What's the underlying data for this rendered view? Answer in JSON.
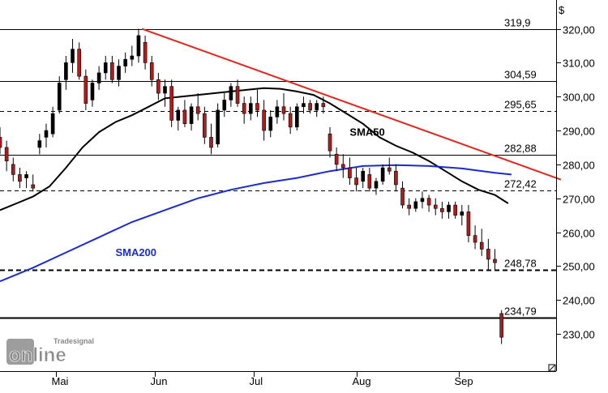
{
  "chart_data": {
    "type": "candlestick",
    "currency_label": "$",
    "y_ticks": [
      "320,00",
      "310,00",
      "300,00",
      "290,00",
      "280,00",
      "270,00",
      "260,00",
      "250,00",
      "240,00",
      "230,00"
    ],
    "y_tick_values": [
      320,
      310,
      300,
      290,
      280,
      270,
      260,
      250,
      240,
      230
    ],
    "ylim": [
      219,
      328.5
    ],
    "x_months": [
      {
        "label": "Mai",
        "day": 17
      },
      {
        "label": "Jun",
        "day": 47
      },
      {
        "label": "Jul",
        "day": 77
      },
      {
        "label": "Aug",
        "day": 108
      },
      {
        "label": "Sep",
        "day": 139
      }
    ],
    "xlim": [
      0,
      170
    ],
    "levels": [
      {
        "value": 319.9,
        "label": "319,9",
        "style": "solid"
      },
      {
        "value": 304.59,
        "label": "304,59",
        "style": "solid"
      },
      {
        "value": 295.65,
        "label": "295,65",
        "style": "dashed"
      },
      {
        "value": 282.88,
        "label": "282,88",
        "style": "solid"
      },
      {
        "value": 272.42,
        "label": "272,42",
        "style": "dashed"
      },
      {
        "value": 248.78,
        "label": "248,78",
        "style": "dashed-bold"
      },
      {
        "value": 234.79,
        "label": "234,79",
        "style": "solid-bold"
      }
    ],
    "trendline": {
      "from": [
        43,
        320.0
      ],
      "to": [
        170,
        275.5
      ],
      "color": "#e4261c"
    },
    "annotations": [
      {
        "text": "SMA50",
        "day": 106,
        "value": 288.5,
        "color": "#000000"
      },
      {
        "text": "SMA200",
        "day": 35,
        "value": 253.0,
        "color": "#1a2ad6"
      }
    ],
    "series": [
      {
        "name": "SMA50",
        "color": "#000000",
        "points": [
          [
            0,
            266.5
          ],
          [
            5,
            268.5
          ],
          [
            10,
            270.5
          ],
          [
            15,
            273.5
          ],
          [
            20,
            279
          ],
          [
            25,
            285
          ],
          [
            30,
            289.5
          ],
          [
            35,
            292.5
          ],
          [
            40,
            294.5
          ],
          [
            45,
            297
          ],
          [
            50,
            299.5
          ],
          [
            55,
            300
          ],
          [
            60,
            300.5
          ],
          [
            65,
            301
          ],
          [
            70,
            301.5
          ],
          [
            75,
            302
          ],
          [
            80,
            302.5
          ],
          [
            85,
            302.3
          ],
          [
            90,
            301.5
          ],
          [
            95,
            300.5
          ],
          [
            100,
            298
          ],
          [
            105,
            295
          ],
          [
            110,
            292
          ],
          [
            115,
            288
          ],
          [
            120,
            285.5
          ],
          [
            125,
            283.5
          ],
          [
            130,
            281
          ],
          [
            135,
            278
          ],
          [
            140,
            275
          ],
          [
            145,
            272.5
          ],
          [
            150,
            271
          ],
          [
            154,
            268.5
          ]
        ]
      },
      {
        "name": "SMA200",
        "color": "#1a2ad6",
        "points": [
          [
            0,
            245.5
          ],
          [
            10,
            249.5
          ],
          [
            20,
            254
          ],
          [
            30,
            258.5
          ],
          [
            40,
            263
          ],
          [
            50,
            266.5
          ],
          [
            60,
            270
          ],
          [
            70,
            272.5
          ],
          [
            80,
            274.5
          ],
          [
            90,
            276
          ],
          [
            100,
            278
          ],
          [
            110,
            279.5
          ],
          [
            120,
            279.8
          ],
          [
            130,
            279.5
          ],
          [
            140,
            278.8
          ],
          [
            150,
            277.5
          ],
          [
            155,
            277
          ]
        ]
      }
    ],
    "candles": [
      [
        0,
        288,
        291,
        283,
        285
      ],
      [
        2,
        285,
        287,
        278,
        281
      ],
      [
        4,
        280,
        282,
        275,
        277
      ],
      [
        6,
        277,
        279,
        273,
        275
      ],
      [
        8,
        276,
        278,
        273,
        277
      ],
      [
        10,
        274,
        277,
        272,
        273
      ],
      [
        12,
        285,
        289,
        283,
        287
      ],
      [
        14,
        288,
        292,
        285,
        290
      ],
      [
        16,
        289,
        297,
        288,
        295
      ],
      [
        18,
        296,
        306,
        295,
        304
      ],
      [
        20,
        305,
        312,
        302,
        310
      ],
      [
        22,
        310,
        317,
        307,
        314
      ],
      [
        24,
        314,
        316,
        305,
        306
      ],
      [
        26,
        306,
        308,
        296,
        298
      ],
      [
        28,
        299,
        305,
        297,
        304
      ],
      [
        30,
        304,
        309,
        302,
        307
      ],
      [
        32,
        307,
        312,
        305,
        310
      ],
      [
        34,
        310,
        312,
        304,
        305
      ],
      [
        36,
        305,
        311,
        303,
        309
      ],
      [
        38,
        309,
        313,
        307,
        311
      ],
      [
        40,
        311,
        315,
        309,
        312
      ],
      [
        42,
        312,
        320,
        310,
        318
      ],
      [
        44,
        316,
        318,
        308,
        310
      ],
      [
        46,
        310,
        312,
        303,
        305
      ],
      [
        48,
        305,
        307,
        299,
        301
      ],
      [
        50,
        301,
        305,
        297,
        303
      ],
      [
        52,
        303,
        305,
        291,
        293
      ],
      [
        54,
        293,
        297,
        290,
        296
      ],
      [
        56,
        296,
        299,
        291,
        292
      ],
      [
        58,
        292,
        298,
        290,
        297
      ],
      [
        60,
        297,
        301,
        293,
        295
      ],
      [
        62,
        295,
        297,
        286,
        288
      ],
      [
        64,
        288,
        292,
        283,
        285
      ],
      [
        66,
        286,
        298,
        285,
        296
      ],
      [
        68,
        296,
        301,
        294,
        299
      ],
      [
        70,
        299,
        304,
        297,
        303
      ],
      [
        72,
        303,
        305,
        297,
        298
      ],
      [
        74,
        298,
        300,
        292,
        295
      ],
      [
        76,
        295,
        300,
        293,
        298
      ],
      [
        78,
        298,
        302,
        294,
        296
      ],
      [
        80,
        296,
        299,
        287,
        290
      ],
      [
        82,
        290,
        296,
        288,
        294
      ],
      [
        84,
        294,
        299,
        292,
        297
      ],
      [
        86,
        297,
        301,
        293,
        295
      ],
      [
        88,
        295,
        297,
        289,
        291
      ],
      [
        90,
        291,
        298,
        290,
        297
      ],
      [
        92,
        297,
        300,
        295,
        298
      ],
      [
        94,
        298,
        299,
        295,
        296
      ],
      [
        96,
        296,
        299,
        294,
        298
      ],
      [
        98,
        298,
        300,
        295,
        297
      ],
      [
        100,
        289,
        291,
        282,
        284
      ],
      [
        102,
        283,
        285,
        278,
        280
      ],
      [
        104,
        280,
        283,
        276,
        279
      ],
      [
        106,
        279,
        282,
        274,
        276
      ],
      [
        108,
        276,
        279,
        272,
        274
      ],
      [
        110,
        275,
        279,
        273,
        278
      ],
      [
        112,
        277,
        279,
        272,
        273
      ],
      [
        114,
        273,
        276,
        271,
        275
      ],
      [
        116,
        275,
        280,
        274,
        279
      ],
      [
        118,
        279,
        282,
        277,
        278
      ],
      [
        120,
        278,
        280,
        272,
        274
      ],
      [
        122,
        273,
        275,
        267,
        268
      ],
      [
        124,
        268,
        270,
        265,
        267
      ],
      [
        126,
        267,
        270,
        266,
        269
      ],
      [
        128,
        269,
        272,
        267,
        270
      ],
      [
        130,
        270,
        271,
        266,
        268
      ],
      [
        132,
        268,
        270,
        265,
        267
      ],
      [
        134,
        267,
        269,
        264,
        266
      ],
      [
        136,
        266,
        269,
        264,
        268
      ],
      [
        138,
        268,
        269,
        264,
        265
      ],
      [
        140,
        265,
        268,
        262,
        266
      ],
      [
        142,
        266,
        268,
        257,
        259
      ],
      [
        144,
        259,
        262,
        255,
        257
      ],
      [
        146,
        257,
        261,
        253,
        255
      ],
      [
        148,
        255,
        258,
        249,
        252
      ],
      [
        150,
        252,
        255,
        249,
        251
      ],
      [
        152,
        236,
        237,
        227,
        229
      ]
    ]
  },
  "watermark": {
    "brand_small": "Tradesignal",
    "brand_large": "online"
  }
}
